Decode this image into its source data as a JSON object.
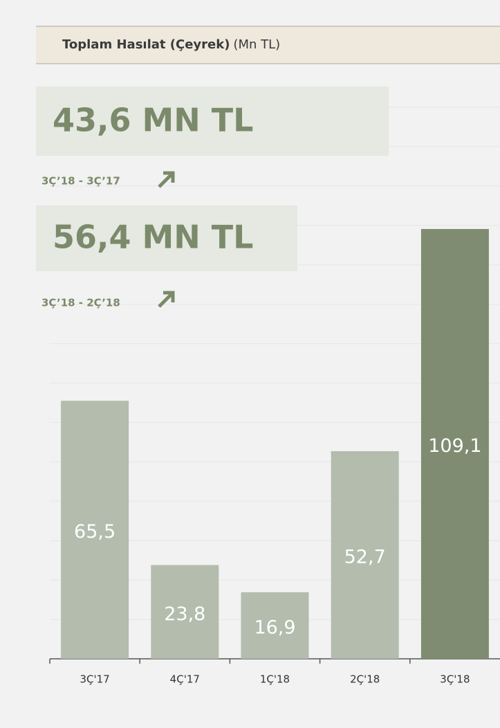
{
  "chart_data": {
    "type": "bar",
    "title": "Toplam Hasılat (Çeyrek)",
    "subtitle": "(Mn TL)",
    "categories": [
      "3Ç'17",
      "4Ç'17",
      "1Ç'18",
      "2Ç'18",
      "3Ç'18"
    ],
    "values": [
      65.5,
      23.8,
      16.9,
      52.7,
      109.1
    ],
    "value_labels": [
      "65,5",
      "23,8",
      "16,9",
      "52,7",
      "109,1"
    ],
    "colors": [
      "#b3bcad",
      "#b3bcad",
      "#b3bcad",
      "#b3bcad",
      "#7f8c72"
    ],
    "ylim": [
      0,
      140
    ],
    "yticks": [
      0,
      10,
      20,
      30,
      40,
      50,
      60,
      70,
      80,
      90,
      100,
      110,
      120,
      130,
      140
    ],
    "grid": true
  },
  "kpis": [
    {
      "value": "43,6 MN TL",
      "label": "3Ç’18 - 3Ç’17"
    },
    {
      "value": "56,4 MN TL",
      "label": "3Ç’18 - 2Ç’18"
    }
  ]
}
